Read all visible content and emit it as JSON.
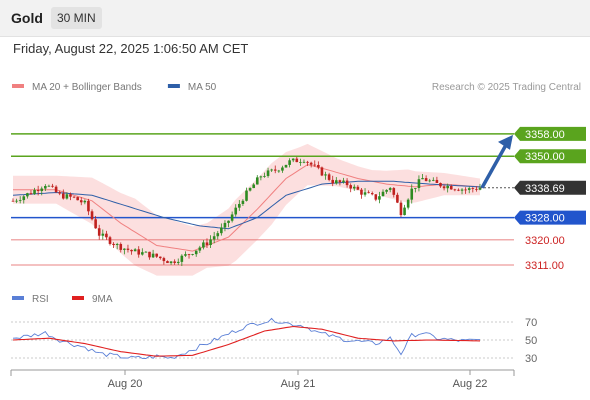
{
  "header": {
    "symbol": "Gold",
    "timeframe": "30 MIN"
  },
  "datetime": "Friday, August 22, 2025 1:06:50 AM CET",
  "colors": {
    "bull_candle": "#2e8b22",
    "bear_candle": "#c0211f",
    "ma20": "#f08080",
    "bollinger_fill": "#fcd9d9",
    "ma50": "#2e5fa8",
    "resistance": "#5aa41e",
    "support_blue": "#2255cc",
    "support_red": "#e05a5a",
    "price_box": "#333333",
    "arrow": "#2e5fa8",
    "rsi": "#5a7fd6",
    "rsi_ma": "#e02020"
  },
  "chart_data": [
    {
      "type": "candlestick",
      "title": "",
      "legend": [
        {
          "name": "MA 20 + Bollinger Bands",
          "color": "#f08080"
        },
        {
          "name": "MA 50",
          "color": "#2e5fa8"
        }
      ],
      "credit": "Research © 2025 Trading Central",
      "ylim": [
        3304,
        3368
      ],
      "x_ticks": [
        "Aug 20",
        "Aug 21",
        "Aug 22"
      ],
      "levels": [
        {
          "value": 3358.0,
          "label": "3358.00",
          "kind": "target"
        },
        {
          "value": 3350.0,
          "label": "3350.00",
          "kind": "resistance"
        },
        {
          "value": 3328.0,
          "label": "3328.00",
          "kind": "pivot"
        },
        {
          "value": 3320.0,
          "label": "3320.00",
          "kind": "support"
        },
        {
          "value": 3311.0,
          "label": "3311.00",
          "kind": "support"
        }
      ],
      "last_price": {
        "value": 3338.69,
        "label": "3338.69"
      },
      "projection": {
        "from": 3338.69,
        "to": 3358.0,
        "direction": "up"
      },
      "close_anchors": [
        [
          0,
          3334
        ],
        [
          5,
          3337
        ],
        [
          9,
          3340
        ],
        [
          13,
          3336
        ],
        [
          17,
          3335
        ],
        [
          20,
          3333
        ],
        [
          24,
          3322
        ],
        [
          29,
          3318
        ],
        [
          33,
          3316
        ],
        [
          37,
          3315
        ],
        [
          40,
          3314
        ],
        [
          44,
          3312
        ],
        [
          49,
          3315
        ],
        [
          54,
          3319
        ],
        [
          59,
          3325
        ],
        [
          64,
          3335
        ],
        [
          69,
          3343
        ],
        [
          73,
          3345
        ],
        [
          77,
          3348
        ],
        [
          81,
          3349
        ],
        [
          85,
          3345
        ],
        [
          89,
          3341
        ],
        [
          93,
          3340
        ],
        [
          97,
          3337
        ],
        [
          101,
          3335
        ],
        [
          105,
          3339
        ],
        [
          108,
          3330
        ],
        [
          111,
          3338
        ],
        [
          114,
          3342
        ],
        [
          118,
          3340
        ],
        [
          122,
          3339
        ],
        [
          126,
          3338
        ],
        [
          130,
          3338.69
        ]
      ],
      "ma20_anchors": [
        [
          0,
          3338
        ],
        [
          12,
          3338
        ],
        [
          22,
          3334
        ],
        [
          30,
          3326
        ],
        [
          40,
          3318
        ],
        [
          50,
          3316
        ],
        [
          60,
          3321
        ],
        [
          68,
          3331
        ],
        [
          76,
          3342
        ],
        [
          82,
          3347
        ],
        [
          88,
          3345
        ],
        [
          96,
          3342
        ],
        [
          104,
          3340
        ],
        [
          112,
          3339
        ],
        [
          120,
          3340
        ],
        [
          130,
          3339
        ]
      ],
      "ma50_anchors": [
        [
          0,
          3336
        ],
        [
          12,
          3337
        ],
        [
          22,
          3336
        ],
        [
          32,
          3332
        ],
        [
          42,
          3328
        ],
        [
          52,
          3325
        ],
        [
          60,
          3324
        ],
        [
          68,
          3328
        ],
        [
          76,
          3336
        ],
        [
          86,
          3340
        ],
        [
          96,
          3341
        ],
        [
          106,
          3341
        ],
        [
          116,
          3340
        ],
        [
          130,
          3339
        ]
      ],
      "band_width_anchors": [
        [
          0,
          5
        ],
        [
          12,
          5
        ],
        [
          24,
          9
        ],
        [
          34,
          12
        ],
        [
          44,
          10
        ],
        [
          54,
          8
        ],
        [
          62,
          11
        ],
        [
          72,
          11
        ],
        [
          80,
          8
        ],
        [
          90,
          5
        ],
        [
          100,
          4
        ],
        [
          110,
          6
        ],
        [
          120,
          4
        ],
        [
          130,
          3
        ]
      ]
    },
    {
      "type": "line",
      "title": "",
      "legend": [
        {
          "name": "RSI",
          "color": "#5a7fd6"
        },
        {
          "name": "9MA",
          "color": "#e02020"
        }
      ],
      "ylim": [
        20,
        80
      ],
      "y_ticks": [
        70,
        50,
        30
      ],
      "rsi_anchors": [
        [
          0,
          52
        ],
        [
          5,
          55
        ],
        [
          9,
          58
        ],
        [
          13,
          50
        ],
        [
          17,
          45
        ],
        [
          20,
          42
        ],
        [
          24,
          35
        ],
        [
          29,
          32
        ],
        [
          33,
          30
        ],
        [
          37,
          30
        ],
        [
          40,
          32
        ],
        [
          44,
          30
        ],
        [
          49,
          38
        ],
        [
          54,
          46
        ],
        [
          59,
          55
        ],
        [
          64,
          64
        ],
        [
          69,
          70
        ],
        [
          73,
          72
        ],
        [
          77,
          68
        ],
        [
          81,
          66
        ],
        [
          85,
          58
        ],
        [
          89,
          54
        ],
        [
          93,
          50
        ],
        [
          97,
          48
        ],
        [
          101,
          46
        ],
        [
          105,
          52
        ],
        [
          108,
          35
        ],
        [
          111,
          55
        ],
        [
          114,
          58
        ],
        [
          118,
          52
        ],
        [
          122,
          50
        ],
        [
          126,
          49
        ],
        [
          130,
          50
        ]
      ],
      "rsi_ma_anchors": [
        [
          0,
          50
        ],
        [
          10,
          52
        ],
        [
          20,
          46
        ],
        [
          30,
          37
        ],
        [
          40,
          32
        ],
        [
          50,
          33
        ],
        [
          60,
          45
        ],
        [
          70,
          60
        ],
        [
          78,
          65
        ],
        [
          86,
          62
        ],
        [
          96,
          52
        ],
        [
          106,
          49
        ],
        [
          116,
          50
        ],
        [
          130,
          49
        ]
      ]
    }
  ]
}
